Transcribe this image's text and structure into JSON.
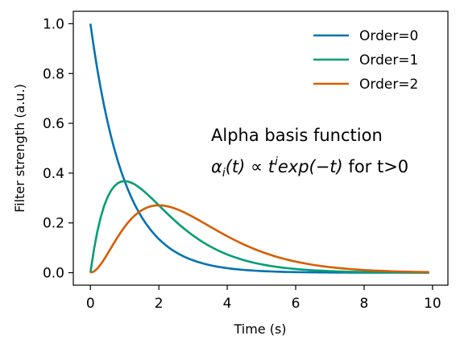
{
  "chart_data": {
    "type": "line",
    "xlabel": "Time (s)",
    "ylabel": "Filter strength (a.u.)",
    "xlim": [
      -0.5,
      10.45
    ],
    "ylim": [
      -0.05,
      1.05
    ],
    "x_ticks": [
      0,
      2,
      4,
      6,
      8,
      10
    ],
    "y_ticks": [
      0.0,
      0.2,
      0.4,
      0.6,
      0.8,
      1.0
    ],
    "x_tick_labels": [
      "0",
      "2",
      "4",
      "6",
      "8",
      "10"
    ],
    "y_tick_labels": [
      "0.0",
      "0.2",
      "0.4",
      "0.6",
      "0.8",
      "1.0"
    ],
    "legend_position": "top-right",
    "grid": false,
    "x": [
      0.0,
      0.1,
      0.2,
      0.3,
      0.4,
      0.5,
      0.6,
      0.7,
      0.8,
      0.9,
      1.0,
      1.1,
      1.2,
      1.3,
      1.4,
      1.5,
      1.6,
      1.7,
      1.8,
      1.9,
      2.0,
      2.1,
      2.2,
      2.3,
      2.4,
      2.5,
      2.6,
      2.7,
      2.8,
      2.9,
      3.0,
      3.1,
      3.2,
      3.3,
      3.4,
      3.5,
      3.6,
      3.7,
      3.8,
      3.9,
      4.0,
      4.1,
      4.2,
      4.3,
      4.4,
      4.5,
      4.6,
      4.7,
      4.8,
      4.9,
      5.0,
      5.1,
      5.2,
      5.3,
      5.4,
      5.5,
      5.6,
      5.7,
      5.8,
      5.9,
      6.0,
      6.1,
      6.2,
      6.3,
      6.4,
      6.5,
      6.6,
      6.7,
      6.8,
      6.9,
      7.0,
      7.1,
      7.2,
      7.3,
      7.4,
      7.5,
      7.6,
      7.7,
      7.8,
      7.9,
      8.0,
      8.1,
      8.2,
      8.3,
      8.4,
      8.5,
      8.6,
      8.7,
      8.8,
      8.9,
      9.0,
      9.1,
      9.2,
      9.3,
      9.4,
      9.5,
      9.6,
      9.7,
      9.8,
      9.9
    ],
    "series": [
      {
        "name": "Order=0",
        "color": "#0072b2",
        "values": [
          1.0,
          0.9048,
          0.8187,
          0.7408,
          0.6703,
          0.6065,
          0.5488,
          0.4966,
          0.4493,
          0.4066,
          0.3679,
          0.3329,
          0.3012,
          0.2725,
          0.2466,
          0.2231,
          0.2019,
          0.1827,
          0.1653,
          0.1496,
          0.1353,
          0.1225,
          0.1108,
          0.1003,
          0.0907,
          0.0821,
          0.0743,
          0.0672,
          0.0608,
          0.055,
          0.0498,
          0.045,
          0.0408,
          0.0369,
          0.0334,
          0.0302,
          0.0273,
          0.0247,
          0.0224,
          0.0202,
          0.0183,
          0.0166,
          0.015,
          0.0136,
          0.0123,
          0.0111,
          0.0101,
          0.0091,
          0.0082,
          0.0074,
          0.0067,
          0.0061,
          0.0055,
          0.005,
          0.0045,
          0.0041,
          0.0037,
          0.0033,
          0.003,
          0.0027,
          0.0025,
          0.0022,
          0.002,
          0.0018,
          0.0017,
          0.0015,
          0.0014,
          0.0012,
          0.0011,
          0.001,
          0.0009,
          0.0008,
          0.0007,
          0.0007,
          0.0006,
          0.0006,
          0.0005,
          0.0005,
          0.0004,
          0.0004,
          0.0003,
          0.0003,
          0.0003,
          0.0002,
          0.0002,
          0.0002,
          0.0002,
          0.0002,
          0.0002,
          0.0001,
          0.0001,
          0.0001,
          0.0001,
          0.0001,
          0.0001,
          0.0001,
          0.0001,
          0.0001,
          0.0001,
          0.0001
        ]
      },
      {
        "name": "Order=1",
        "color": "#009e73",
        "values": [
          0.0,
          0.0905,
          0.1637,
          0.2222,
          0.2681,
          0.3033,
          0.3293,
          0.3476,
          0.3595,
          0.3659,
          0.3679,
          0.3662,
          0.3614,
          0.3543,
          0.3452,
          0.3347,
          0.323,
          0.3106,
          0.2975,
          0.2842,
          0.2707,
          0.2572,
          0.2438,
          0.2306,
          0.2177,
          0.2052,
          0.1931,
          0.1815,
          0.1703,
          0.1596,
          0.1494,
          0.1397,
          0.1304,
          0.1217,
          0.1135,
          0.1057,
          0.0984,
          0.0915,
          0.085,
          0.079,
          0.0733,
          0.068,
          0.063,
          0.0584,
          0.054,
          0.05,
          0.0462,
          0.0427,
          0.0395,
          0.0365,
          0.0337,
          0.0311,
          0.0287,
          0.0265,
          0.0244,
          0.0225,
          0.0207,
          0.0191,
          0.0176,
          0.0162,
          0.0149,
          0.0137,
          0.0126,
          0.0116,
          0.0106,
          0.0098,
          0.009,
          0.0083,
          0.0076,
          0.007,
          0.0064,
          0.0059,
          0.0054,
          0.0049,
          0.0045,
          0.0041,
          0.0038,
          0.0035,
          0.0032,
          0.0029,
          0.0027,
          0.0025,
          0.0022,
          0.0021,
          0.0019,
          0.0017,
          0.0016,
          0.0014,
          0.0013,
          0.0012,
          0.0011,
          0.001,
          0.0009,
          0.0009,
          0.0008,
          0.0007,
          0.0007,
          0.0006,
          0.0005,
          0.0005
        ]
      },
      {
        "name": "Order=2",
        "color": "#d55e00",
        "values": [
          0.0,
          0.0045,
          0.0164,
          0.0333,
          0.0536,
          0.0758,
          0.0988,
          0.1217,
          0.1438,
          0.1647,
          0.1839,
          0.2014,
          0.2169,
          0.2303,
          0.2417,
          0.251,
          0.2584,
          0.264,
          0.2678,
          0.27,
          0.2707,
          0.2701,
          0.2682,
          0.2652,
          0.2613,
          0.2565,
          0.251,
          0.245,
          0.2384,
          0.2314,
          0.224,
          0.2165,
          0.2087,
          0.2008,
          0.1929,
          0.185,
          0.1771,
          0.1693,
          0.1615,
          0.154,
          0.1465,
          0.1393,
          0.1323,
          0.1255,
          0.1189,
          0.1125,
          0.1064,
          0.1005,
          0.0948,
          0.0894,
          0.0842,
          0.0793,
          0.0746,
          0.0701,
          0.0658,
          0.0618,
          0.058,
          0.0544,
          0.0509,
          0.0477,
          0.0446,
          0.0418,
          0.0391,
          0.0365,
          0.0341,
          0.0318,
          0.0297,
          0.0277,
          0.0258,
          0.0241,
          0.0224,
          0.0209,
          0.0194,
          0.0181,
          0.0168,
          0.0156,
          0.0145,
          0.0135,
          0.0125,
          0.0116,
          0.0107,
          0.01,
          0.0092,
          0.0086,
          0.0079,
          0.0074,
          0.0068,
          0.0063,
          0.0058,
          0.0054,
          0.005,
          0.0046,
          0.0043,
          0.004,
          0.0037,
          0.0034,
          0.0031,
          0.0029,
          0.0027,
          0.0025
        ]
      }
    ],
    "annotation": {
      "line1": "Alpha basis function",
      "formula_alpha": "α",
      "formula_sub": "i",
      "formula_mid": "(t) ∝ t",
      "formula_sup": "i",
      "formula_tail": "exp(−t)",
      "formula_suffix": " for t>0"
    }
  }
}
